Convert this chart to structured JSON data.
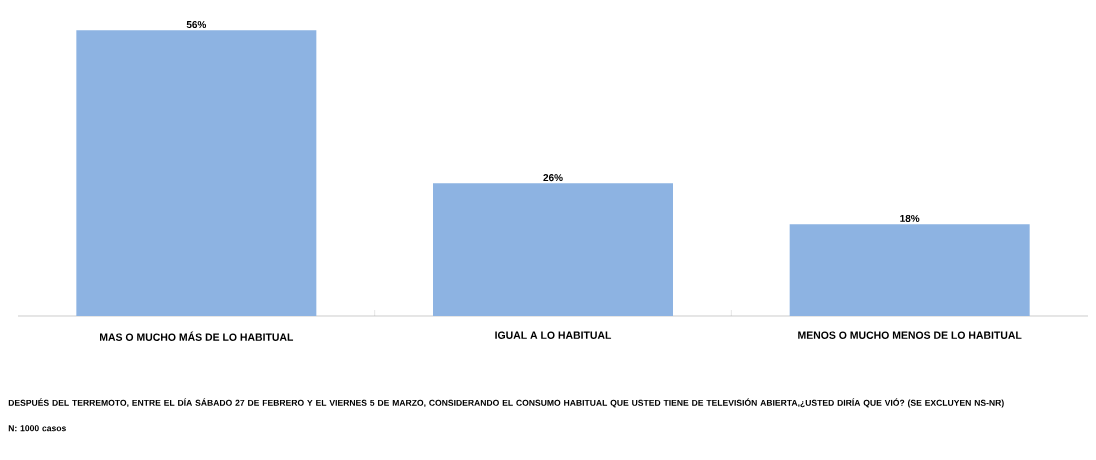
{
  "chart_data": {
    "type": "bar",
    "categories": [
      "MAS O MUCHO MÁS DE LO HABITUAL",
      "IGUAL A LO HABITUAL",
      "MENOS O MUCHO MENOS DE LO HABITUAL"
    ],
    "values": [
      56,
      26,
      18
    ],
    "color": "#8db3e2",
    "value_labels": [
      "56%",
      "26%",
      "18%"
    ],
    "annotations": [
      "DESPUÉS DEL TERREMOTO, ENTRE EL DÍA SÁBADO 27 DE FEBRERO Y EL VIERNES 5 DE MARZO, CONSIDERANDO EL CONSUMO HABITUAL QUE USTED TIENE DE TELEVISIÓN ABIERTA,¿USTED DIRÍA QUE VIÓ? (SE EXCLUYEN NS-NR)",
      "N: 1000 casos"
    ]
  }
}
